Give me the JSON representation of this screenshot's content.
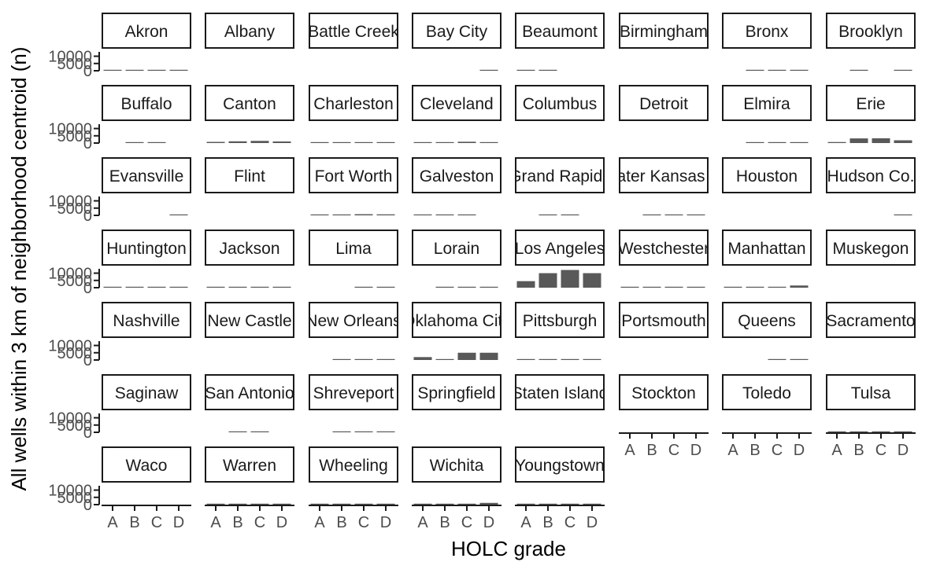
{
  "chart_data": {
    "type": "bar",
    "layout": "faceted grid, 8 columns x 7 rows, one panel per city",
    "xlabel": "HOLC grade",
    "ylabel": "All wells within 3 km of neighborhood centroid (n)",
    "categories": [
      "A",
      "B",
      "C",
      "D"
    ],
    "ylim": [
      0,
      13000
    ],
    "y_ticks": [
      0,
      5000,
      10000
    ],
    "y_tick_labels": [
      "0",
      "5000",
      "10000"
    ],
    "grid": false,
    "legend": "none",
    "bar_color": "#595959",
    "panels": [
      {
        "city": "Akron",
        "values": [
          300,
          500,
          500,
          500
        ]
      },
      {
        "city": "Albany",
        "values": [
          null,
          null,
          null,
          null
        ]
      },
      {
        "city": "Battle Creek",
        "values": [
          null,
          null,
          null,
          null
        ]
      },
      {
        "city": "Bay City",
        "values": [
          null,
          null,
          null,
          10
        ]
      },
      {
        "city": "Beaumont",
        "values": [
          30,
          20,
          null,
          null
        ]
      },
      {
        "city": "Birmingham",
        "values": [
          null,
          null,
          null,
          null
        ]
      },
      {
        "city": "Bronx",
        "values": [
          null,
          10,
          10,
          10
        ]
      },
      {
        "city": "Brooklyn",
        "values": [
          null,
          10,
          null,
          10
        ]
      },
      {
        "city": "Buffalo",
        "values": [
          null,
          20,
          20,
          null
        ]
      },
      {
        "city": "Canton",
        "values": [
          800,
          1200,
          1500,
          1100
        ]
      },
      {
        "city": "Charleston",
        "values": [
          100,
          100,
          100,
          100
        ]
      },
      {
        "city": "Cleveland",
        "values": [
          600,
          600,
          900,
          500
        ]
      },
      {
        "city": "Columbus",
        "values": [
          null,
          null,
          null,
          null
        ]
      },
      {
        "city": "Detroit",
        "values": [
          null,
          null,
          null,
          null
        ]
      },
      {
        "city": "Elmira",
        "values": [
          null,
          10,
          10,
          10
        ]
      },
      {
        "city": "Erie",
        "values": [
          700,
          3200,
          3300,
          1900
        ]
      },
      {
        "city": "Evansville",
        "values": [
          null,
          null,
          null,
          10
        ]
      },
      {
        "city": "Flint",
        "values": [
          null,
          null,
          null,
          null
        ]
      },
      {
        "city": "Fort Worth",
        "values": [
          600,
          600,
          800,
          700
        ]
      },
      {
        "city": "Galveston",
        "values": [
          10,
          10,
          10,
          null
        ]
      },
      {
        "city": "Grand Rapids",
        "values": [
          null,
          200,
          400,
          null
        ]
      },
      {
        "city": "Greater Kansas City",
        "values": [
          null,
          100,
          100,
          100
        ]
      },
      {
        "city": "Houston",
        "values": [
          null,
          null,
          null,
          null
        ]
      },
      {
        "city": "Hudson Co.",
        "values": [
          null,
          null,
          null,
          10
        ]
      },
      {
        "city": "Huntington",
        "values": [
          200,
          200,
          200,
          50
        ]
      },
      {
        "city": "Jackson",
        "values": [
          20,
          20,
          20,
          20
        ]
      },
      {
        "city": "Lima",
        "values": [
          null,
          null,
          10,
          10
        ]
      },
      {
        "city": "Lorain",
        "values": [
          null,
          100,
          600,
          100
        ]
      },
      {
        "city": "Los Angeles",
        "values": [
          4500,
          10000,
          12200,
          10000
        ]
      },
      {
        "city": "Westchester",
        "values": [
          20,
          20,
          20,
          20
        ]
      },
      {
        "city": "Manhattan",
        "values": [
          200,
          200,
          200,
          1500
        ]
      },
      {
        "city": "Muskegon",
        "values": [
          null,
          null,
          null,
          null
        ]
      },
      {
        "city": "Nashville",
        "values": [
          null,
          null,
          null,
          null
        ]
      },
      {
        "city": "New Castle",
        "values": [
          null,
          null,
          null,
          null
        ]
      },
      {
        "city": "New Orleans",
        "values": [
          null,
          10,
          10,
          10
        ]
      },
      {
        "city": "Oklahoma City",
        "values": [
          2000,
          500,
          5000,
          5000
        ]
      },
      {
        "city": "Pittsburgh",
        "values": [
          20,
          20,
          20,
          20
        ]
      },
      {
        "city": "Portsmouth",
        "values": [
          null,
          null,
          null,
          null
        ]
      },
      {
        "city": "Queens",
        "values": [
          null,
          null,
          200,
          50
        ]
      },
      {
        "city": "Sacramento",
        "values": [
          null,
          null,
          null,
          null
        ]
      },
      {
        "city": "Saginaw",
        "values": [
          null,
          null,
          null,
          null
        ]
      },
      {
        "city": "San Antonio",
        "values": [
          null,
          300,
          300,
          null
        ]
      },
      {
        "city": "Shreveport",
        "values": [
          null,
          300,
          300,
          300
        ]
      },
      {
        "city": "Springfield",
        "values": [
          null,
          null,
          null,
          null
        ]
      },
      {
        "city": "Staten Island",
        "values": [
          null,
          null,
          null,
          null
        ]
      },
      {
        "city": "Stockton",
        "values": [
          null,
          null,
          null,
          null
        ]
      },
      {
        "city": "Toledo",
        "values": [
          null,
          null,
          null,
          null
        ]
      },
      {
        "city": "Tulsa",
        "values": [
          200,
          200,
          200,
          200
        ]
      },
      {
        "city": "Waco",
        "values": [
          null,
          null,
          null,
          null
        ]
      },
      {
        "city": "Warren",
        "values": [
          200,
          600,
          600,
          400
        ]
      },
      {
        "city": "Wheeling",
        "values": [
          100,
          100,
          100,
          100
        ]
      },
      {
        "city": "Wichita",
        "values": [
          100,
          100,
          200,
          1200
        ]
      },
      {
        "city": "Youngstown",
        "values": [
          400,
          500,
          500,
          400
        ]
      }
    ]
  }
}
